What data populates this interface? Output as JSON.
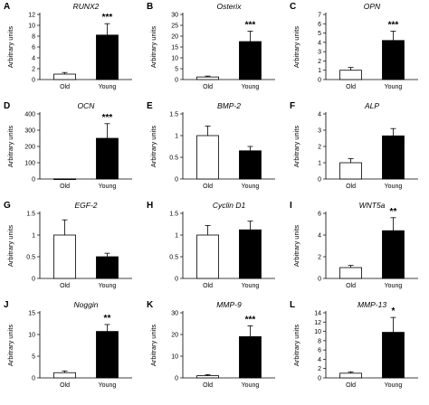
{
  "y_axis_label": "Arbitrary units",
  "categories": [
    "Old",
    "Young"
  ],
  "chart_data": [
    {
      "type": "bar",
      "panel": "A",
      "title": "RUNX2",
      "categories": [
        "Old",
        "Young"
      ],
      "ylabel": "Arbitrary units",
      "ylim": [
        0,
        12
      ],
      "yticks": [
        0,
        2,
        4,
        6,
        8,
        10,
        12
      ],
      "values": [
        1.0,
        8.2
      ],
      "errors": [
        0.3,
        2.1
      ],
      "significance": [
        "",
        "***"
      ]
    },
    {
      "type": "bar",
      "panel": "B",
      "title": "Osterix",
      "categories": [
        "Old",
        "Young"
      ],
      "ylabel": "Arbitrary units",
      "ylim": [
        0,
        30
      ],
      "yticks": [
        0,
        5,
        10,
        15,
        20,
        25,
        30
      ],
      "values": [
        1.2,
        17.5
      ],
      "errors": [
        0.4,
        4.8
      ],
      "significance": [
        "",
        "***"
      ]
    },
    {
      "type": "bar",
      "panel": "C",
      "title": "OPN",
      "categories": [
        "Old",
        "Young"
      ],
      "ylabel": "Arbitrary units",
      "ylim": [
        0,
        7
      ],
      "yticks": [
        0,
        1,
        2,
        3,
        4,
        5,
        6,
        7
      ],
      "values": [
        1.0,
        4.2
      ],
      "errors": [
        0.3,
        1.0
      ],
      "significance": [
        "",
        "***"
      ]
    },
    {
      "type": "bar",
      "panel": "D",
      "title": "OCN",
      "categories": [
        "Old",
        "Young"
      ],
      "ylabel": "Arbitrary units",
      "ylim": [
        0,
        400
      ],
      "yticks": [
        0,
        100,
        200,
        300,
        400
      ],
      "values": [
        1,
        250
      ],
      "errors": [
        0,
        90
      ],
      "significance": [
        "",
        "***"
      ]
    },
    {
      "type": "bar",
      "panel": "E",
      "title": "BMP-2",
      "categories": [
        "Old",
        "Young"
      ],
      "ylabel": "Arbitrary units",
      "ylim": [
        0,
        1.5
      ],
      "yticks": [
        0,
        0.5,
        1,
        1.5
      ],
      "ytick_labels": [
        "0",
        "0.5",
        "1",
        "1.5"
      ],
      "values": [
        1.0,
        0.65
      ],
      "errors": [
        0.22,
        0.1
      ],
      "significance": [
        "",
        ""
      ]
    },
    {
      "type": "bar",
      "panel": "F",
      "title": "ALP",
      "categories": [
        "Old",
        "Young"
      ],
      "ylabel": "Arbitrary units",
      "ylim": [
        0,
        4
      ],
      "yticks": [
        0,
        1,
        2,
        3,
        4
      ],
      "values": [
        1.0,
        2.65
      ],
      "errors": [
        0.25,
        0.45
      ],
      "significance": [
        "",
        ""
      ]
    },
    {
      "type": "bar",
      "panel": "G",
      "title": "EGF-2",
      "categories": [
        "Old",
        "Young"
      ],
      "ylabel": "Arbitrary units",
      "ylim": [
        0,
        1.5
      ],
      "yticks": [
        0,
        0.5,
        1,
        1.5
      ],
      "ytick_labels": [
        "0",
        "0.5",
        "1",
        "1.5"
      ],
      "values": [
        1.0,
        0.5
      ],
      "errors": [
        0.35,
        0.08
      ],
      "significance": [
        "",
        ""
      ]
    },
    {
      "type": "bar",
      "panel": "H",
      "title": "Cyclin D1",
      "categories": [
        "Old",
        "Young"
      ],
      "ylabel": "",
      "ylim": [
        0,
        1.5
      ],
      "yticks": [
        0,
        0.5,
        1,
        1.5
      ],
      "ytick_labels": [
        "0",
        "0.5",
        "1",
        "1.5"
      ],
      "values": [
        1.0,
        1.12
      ],
      "errors": [
        0.22,
        0.2
      ],
      "significance": [
        "",
        ""
      ]
    },
    {
      "type": "bar",
      "panel": "I",
      "title": "WNT5a",
      "categories": [
        "Old",
        "Young"
      ],
      "ylabel": "Arbitrary units",
      "ylim": [
        0,
        6
      ],
      "yticks": [
        0,
        2,
        4,
        6
      ],
      "values": [
        1.0,
        4.4
      ],
      "errors": [
        0.2,
        1.2
      ],
      "significance": [
        "",
        "**"
      ]
    },
    {
      "type": "bar",
      "panel": "J",
      "title": "Noggin",
      "categories": [
        "Old",
        "Young"
      ],
      "ylabel": "Arbitrary units",
      "ylim": [
        0,
        15
      ],
      "yticks": [
        0,
        5,
        10,
        15
      ],
      "values": [
        1.2,
        10.7
      ],
      "errors": [
        0.4,
        1.6
      ],
      "significance": [
        "",
        "**"
      ]
    },
    {
      "type": "bar",
      "panel": "K",
      "title": "MMP-9",
      "categories": [
        "Old",
        "Young"
      ],
      "ylabel": "Arbitrary units",
      "ylim": [
        0,
        30
      ],
      "yticks": [
        0,
        10,
        20,
        30
      ],
      "values": [
        1.0,
        19.0
      ],
      "errors": [
        0.5,
        5.0
      ],
      "significance": [
        "",
        "***"
      ]
    },
    {
      "type": "bar",
      "panel": "L",
      "title": "MMP-13",
      "categories": [
        "Old",
        "Young"
      ],
      "ylabel": "Arbitrary units",
      "ylim": [
        0,
        14
      ],
      "yticks": [
        0,
        2,
        4,
        6,
        8,
        10,
        12,
        14
      ],
      "values": [
        1.0,
        9.8
      ],
      "errors": [
        0.3,
        3.2
      ],
      "significance": [
        "",
        "*"
      ]
    }
  ]
}
